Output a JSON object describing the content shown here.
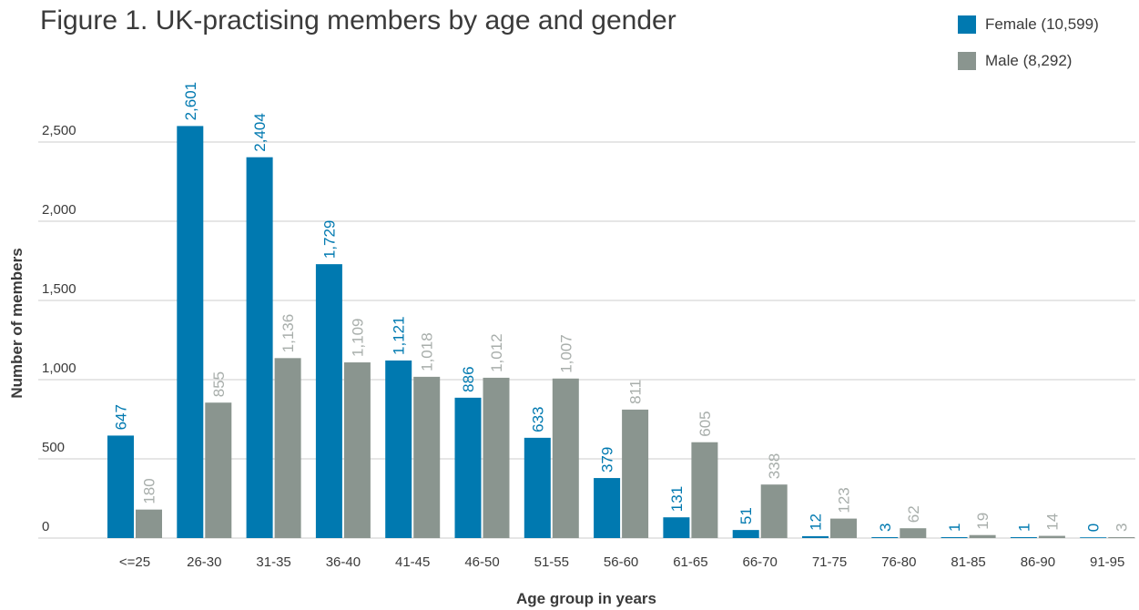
{
  "colors": {
    "female": "#0079b0",
    "male": "#8a958f",
    "grid": "#cccccc",
    "text": "#3a3a3a",
    "male_label": "#a8aeab"
  },
  "chart_data": {
    "type": "bar",
    "title": "Figure 1. UK-practising members by age and gender",
    "xlabel": "Age group in years",
    "ylabel": "Number of members",
    "ylim": [
      0,
      2500
    ],
    "yticks": [
      0,
      500,
      1000,
      1500,
      2000,
      2500
    ],
    "ytick_labels": [
      "0",
      "500",
      "1,000",
      "1,500",
      "2,000",
      "2,500"
    ],
    "grid": true,
    "legend_position": "top-right",
    "categories": [
      "<=25",
      "26-30",
      "31-35",
      "36-40",
      "41-45",
      "46-50",
      "51-55",
      "56-60",
      "61-65",
      "66-70",
      "71-75",
      "76-80",
      "81-85",
      "86-90",
      "91-95"
    ],
    "series": [
      {
        "name": "Female (10,599)",
        "values": [
          647,
          2601,
          2404,
          1729,
          1121,
          886,
          633,
          379,
          131,
          51,
          12,
          3,
          1,
          1,
          0
        ],
        "labels": [
          "647",
          "2,601",
          "2,404",
          "1,729",
          "1,121",
          "886",
          "633",
          "379",
          "131",
          "51",
          "12",
          "3",
          "1",
          "1",
          "0"
        ]
      },
      {
        "name": "Male (8,292)",
        "values": [
          180,
          855,
          1136,
          1109,
          1018,
          1012,
          1007,
          811,
          605,
          338,
          123,
          62,
          19,
          14,
          3
        ],
        "labels": [
          "180",
          "855",
          "1,136",
          "1,109",
          "1,018",
          "1,012",
          "1,007",
          "811",
          "605",
          "338",
          "123",
          "62",
          "19",
          "14",
          "3"
        ]
      }
    ]
  }
}
